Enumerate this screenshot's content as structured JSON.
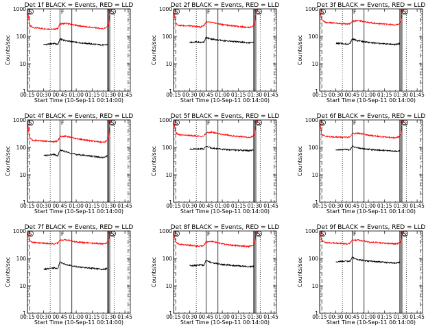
{
  "chart_data": [
    {
      "type": "line",
      "title": "Det 1f BLACK = Events, RED = LLD",
      "xlabel": "Start Time (10-Sep-11 00:14:00)",
      "ylabel": "Counts/sec",
      "yscale": "log",
      "ylim": [
        1,
        1000
      ],
      "xlim": [
        "00:15",
        "01:50"
      ],
      "xticks": [
        "00:15",
        "00:30",
        "00:45",
        "01:00",
        "01:15",
        "01:30",
        "01:45"
      ],
      "yticks": [
        "1",
        "10",
        "100",
        "1000"
      ],
      "grid": false,
      "legend": "none",
      "markers": [
        {
          "label": "S",
          "x": "00:15"
        },
        {
          "label": "F",
          "x": "00:45"
        },
        {
          "label": "F",
          "x": "01:29"
        },
        {
          "label": "S",
          "x": "01:31"
        }
      ],
      "series": [
        {
          "color": "#ff0000",
          "x": [
            "00:15",
            "00:16",
            "00:17",
            "00:20",
            "00:30",
            "00:40",
            "00:43",
            "00:45",
            "00:50",
            "01:00",
            "01:10",
            "01:20",
            "01:25",
            "01:28",
            "01:30",
            "01:31",
            "01:32"
          ],
          "values": [
            1000,
            500,
            250,
            210,
            190,
            180,
            195,
            280,
            300,
            250,
            220,
            200,
            190,
            210,
            280,
            800,
            1000
          ]
        },
        {
          "color": "#000000",
          "x": [
            "00:30",
            "00:35",
            "00:40",
            "00:43",
            "00:45",
            "00:50",
            "01:00",
            "01:10",
            "01:20",
            "01:25",
            "01:29"
          ],
          "values": [
            50,
            52,
            55,
            50,
            80,
            70,
            60,
            55,
            50,
            48,
            50
          ]
        }
      ]
    },
    {
      "type": "line",
      "title": "Det 2f BLACK = Events, RED = LLD",
      "xlabel": "Start Time (10-Sep-11 00:14:00)",
      "ylabel": "Counts/sec",
      "yscale": "log",
      "ylim": [
        1,
        1000
      ],
      "xlim": [
        "00:15",
        "01:50"
      ],
      "xticks": [
        "00:15",
        "00:30",
        "00:45",
        "01:00",
        "01:15",
        "01:30",
        "01:45"
      ],
      "yticks": [
        "1",
        "10",
        "100",
        "1000"
      ],
      "grid": false,
      "legend": "none",
      "markers": [
        {
          "label": "S",
          "x": "00:15"
        },
        {
          "label": "F",
          "x": "00:45"
        },
        {
          "label": "F",
          "x": "01:29"
        },
        {
          "label": "S",
          "x": "01:31"
        }
      ],
      "series": [
        {
          "color": "#ff0000",
          "x": [
            "00:15",
            "00:16",
            "00:17",
            "00:20",
            "00:30",
            "00:40",
            "00:43",
            "00:45",
            "00:50",
            "01:00",
            "01:10",
            "01:20",
            "01:25",
            "01:28",
            "01:30",
            "01:31",
            "01:32"
          ],
          "values": [
            1000,
            500,
            300,
            250,
            240,
            220,
            250,
            330,
            320,
            270,
            240,
            220,
            210,
            230,
            300,
            800,
            1000
          ]
        },
        {
          "color": "#000000",
          "x": [
            "00:30",
            "00:35",
            "00:40",
            "00:43",
            "00:45",
            "00:50",
            "01:00",
            "01:10",
            "01:20",
            "01:25",
            "01:29"
          ],
          "values": [
            60,
            62,
            60,
            62,
            90,
            80,
            70,
            65,
            60,
            58,
            60
          ]
        }
      ]
    },
    {
      "type": "line",
      "title": "Det 3f BLACK = Events, RED = LLD",
      "xlabel": "Start Time (10-Sep-11 00:14:00)",
      "ylabel": "Counts/sec",
      "yscale": "log",
      "ylim": [
        1,
        1000
      ],
      "xlim": [
        "00:15",
        "01:50"
      ],
      "xticks": [
        "00:15",
        "00:30",
        "00:45",
        "01:00",
        "01:15",
        "01:30",
        "01:45"
      ],
      "yticks": [
        "1",
        "10",
        "100",
        "1000"
      ],
      "grid": false,
      "legend": "none",
      "markers": [
        {
          "label": "S",
          "x": "00:15"
        },
        {
          "label": "F",
          "x": "00:45"
        },
        {
          "label": "F",
          "x": "01:29"
        },
        {
          "label": "S",
          "x": "01:31"
        }
      ],
      "series": [
        {
          "color": "#ff0000",
          "x": [
            "00:15",
            "00:16",
            "00:17",
            "00:20",
            "00:30",
            "00:40",
            "00:43",
            "00:45",
            "00:50",
            "01:00",
            "01:10",
            "01:20",
            "01:25",
            "01:28",
            "01:30",
            "01:31",
            "01:32"
          ],
          "values": [
            1000,
            600,
            400,
            320,
            300,
            280,
            290,
            350,
            380,
            320,
            290,
            270,
            260,
            280,
            350,
            800,
            1000
          ]
        },
        {
          "color": "#000000",
          "x": [
            "00:30",
            "00:35",
            "00:40",
            "00:43",
            "00:45",
            "00:50",
            "01:00",
            "01:10",
            "01:20",
            "01:25",
            "01:29"
          ],
          "values": [
            55,
            55,
            52,
            55,
            80,
            70,
            60,
            55,
            52,
            50,
            55
          ]
        }
      ]
    },
    {
      "type": "line",
      "title": "Det 4f BLACK = Events, RED = LLD",
      "xlabel": "Start Time (10-Sep-11 00:14:00)",
      "ylabel": "Counts/sec",
      "yscale": "log",
      "ylim": [
        1,
        1000
      ],
      "xlim": [
        "00:15",
        "01:50"
      ],
      "xticks": [
        "00:15",
        "00:30",
        "00:45",
        "01:00",
        "01:15",
        "01:30",
        "01:45"
      ],
      "yticks": [
        "1",
        "10",
        "100",
        "1000"
      ],
      "grid": false,
      "legend": "none",
      "markers": [
        {
          "label": "S",
          "x": "00:15"
        },
        {
          "label": "F",
          "x": "00:45"
        },
        {
          "label": "F",
          "x": "01:29"
        },
        {
          "label": "S",
          "x": "01:31"
        }
      ],
      "series": [
        {
          "color": "#ff0000",
          "x": [
            "00:15",
            "00:16",
            "00:17",
            "00:20",
            "00:30",
            "00:40",
            "00:43",
            "00:45",
            "00:50",
            "01:00",
            "01:10",
            "01:20",
            "01:25",
            "01:28",
            "01:30",
            "01:31",
            "01:32"
          ],
          "values": [
            1000,
            400,
            220,
            180,
            170,
            160,
            170,
            240,
            260,
            210,
            180,
            160,
            150,
            170,
            240,
            700,
            1000
          ]
        },
        {
          "color": "#000000",
          "x": [
            "00:30",
            "00:35",
            "00:40",
            "00:43",
            "00:45",
            "00:50",
            "01:00",
            "01:10",
            "01:20",
            "01:25",
            "01:29"
          ],
          "values": [
            50,
            52,
            55,
            48,
            80,
            70,
            55,
            50,
            45,
            42,
            50
          ]
        }
      ]
    },
    {
      "type": "line",
      "title": "Det 5f BLACK = Events, RED = LLD",
      "xlabel": "Start Time (10-Sep-11 00:14:00)",
      "ylabel": "Counts/sec",
      "yscale": "log",
      "ylim": [
        1,
        1000
      ],
      "xlim": [
        "00:15",
        "01:50"
      ],
      "xticks": [
        "00:15",
        "00:30",
        "00:45",
        "01:00",
        "01:15",
        "01:30",
        "01:45"
      ],
      "yticks": [
        "1",
        "10",
        "100",
        "1000"
      ],
      "grid": false,
      "legend": "none",
      "markers": [
        {
          "label": "S",
          "x": "00:15"
        },
        {
          "label": "F",
          "x": "00:45"
        },
        {
          "label": "F",
          "x": "01:29"
        },
        {
          "label": "S",
          "x": "01:31"
        }
      ],
      "series": [
        {
          "color": "#ff0000",
          "x": [
            "00:15",
            "00:16",
            "00:17",
            "00:20",
            "00:30",
            "00:40",
            "00:43",
            "00:45",
            "00:50",
            "01:00",
            "01:10",
            "01:20",
            "01:25",
            "01:28",
            "01:30",
            "01:31",
            "01:32"
          ],
          "values": [
            1000,
            600,
            350,
            290,
            270,
            250,
            260,
            330,
            360,
            300,
            260,
            240,
            230,
            250,
            320,
            800,
            1000
          ]
        },
        {
          "color": "#000000",
          "x": [
            "00:30",
            "00:35",
            "00:40",
            "00:43",
            "00:45",
            "00:50",
            "01:00",
            "01:10",
            "01:20",
            "01:25",
            "01:29"
          ],
          "values": [
            85,
            88,
            90,
            88,
            110,
            95,
            85,
            80,
            78,
            75,
            80
          ]
        }
      ]
    },
    {
      "type": "line",
      "title": "Det 6f BLACK = Events, RED = LLD",
      "xlabel": "Start Time (10-Sep-11 00:14:00)",
      "ylabel": "Counts/sec",
      "yscale": "log",
      "ylim": [
        1,
        1000
      ],
      "xlim": [
        "00:15",
        "01:50"
      ],
      "xticks": [
        "00:15",
        "00:30",
        "00:45",
        "01:00",
        "01:15",
        "01:30",
        "01:45"
      ],
      "yticks": [
        "1",
        "10",
        "100",
        "1000"
      ],
      "grid": false,
      "legend": "none",
      "markers": [
        {
          "label": "S",
          "x": "00:15"
        },
        {
          "label": "F",
          "x": "00:45"
        },
        {
          "label": "F",
          "x": "01:29"
        },
        {
          "label": "S",
          "x": "01:31"
        }
      ],
      "series": [
        {
          "color": "#ff0000",
          "x": [
            "00:15",
            "00:16",
            "00:17",
            "00:20",
            "00:30",
            "00:40",
            "00:43",
            "00:45",
            "00:50",
            "01:00",
            "01:10",
            "01:20",
            "01:25",
            "01:28",
            "01:30",
            "01:31",
            "01:32"
          ],
          "values": [
            1000,
            500,
            300,
            250,
            240,
            230,
            240,
            310,
            330,
            280,
            250,
            230,
            220,
            240,
            310,
            800,
            1000
          ]
        },
        {
          "color": "#000000",
          "x": [
            "00:30",
            "00:35",
            "00:40",
            "00:43",
            "00:45",
            "00:50",
            "01:00",
            "01:10",
            "01:20",
            "01:25",
            "01:29"
          ],
          "values": [
            80,
            82,
            85,
            80,
            110,
            95,
            85,
            80,
            75,
            72,
            75
          ]
        }
      ]
    },
    {
      "type": "line",
      "title": "Det 7f BLACK = Events, RED = LLD",
      "xlabel": "Start Time (10-Sep-11 00:14:00)",
      "ylabel": "Counts/sec",
      "yscale": "log",
      "ylim": [
        1,
        1000
      ],
      "xlim": [
        "00:15",
        "01:50"
      ],
      "xticks": [
        "00:15",
        "00:30",
        "00:45",
        "01:00",
        "01:15",
        "01:30",
        "01:45"
      ],
      "yticks": [
        "1",
        "10",
        "100",
        "1000"
      ],
      "grid": false,
      "legend": "none",
      "markers": [
        {
          "label": "S",
          "x": "00:15"
        },
        {
          "label": "F",
          "x": "00:45"
        },
        {
          "label": "F",
          "x": "01:29"
        },
        {
          "label": "S",
          "x": "01:31"
        }
      ],
      "series": [
        {
          "color": "#ff0000",
          "x": [
            "00:15",
            "00:16",
            "00:17",
            "00:20",
            "00:30",
            "00:40",
            "00:43",
            "00:45",
            "00:50",
            "01:00",
            "01:10",
            "01:20",
            "01:25",
            "01:28",
            "01:30",
            "01:31",
            "01:32"
          ],
          "values": [
            1000,
            700,
            450,
            380,
            360,
            340,
            360,
            450,
            480,
            400,
            370,
            350,
            340,
            360,
            420,
            850,
            1000
          ]
        },
        {
          "color": "#000000",
          "x": [
            "00:30",
            "00:35",
            "00:40",
            "00:43",
            "00:45",
            "00:50",
            "01:00",
            "01:10",
            "01:20",
            "01:25",
            "01:29"
          ],
          "values": [
            40,
            42,
            45,
            42,
            75,
            60,
            50,
            45,
            42,
            40,
            42
          ]
        }
      ]
    },
    {
      "type": "line",
      "title": "Det 8f BLACK = Events, RED = LLD",
      "xlabel": "Start Time (10-Sep-11 00:14:00)",
      "ylabel": "Counts/sec",
      "yscale": "log",
      "ylim": [
        1,
        1000
      ],
      "xlim": [
        "00:15",
        "01:50"
      ],
      "xticks": [
        "00:15",
        "00:30",
        "00:45",
        "01:00",
        "01:15",
        "01:30",
        "01:45"
      ],
      "yticks": [
        "1",
        "10",
        "100",
        "1000"
      ],
      "grid": false,
      "legend": "none",
      "markers": [
        {
          "label": "S",
          "x": "00:15"
        },
        {
          "label": "F",
          "x": "00:45"
        },
        {
          "label": "F",
          "x": "01:29"
        },
        {
          "label": "S",
          "x": "01:31"
        }
      ],
      "series": [
        {
          "color": "#ff0000",
          "x": [
            "00:15",
            "00:16",
            "00:17",
            "00:20",
            "00:30",
            "00:40",
            "00:43",
            "00:45",
            "00:50",
            "01:00",
            "01:10",
            "01:20",
            "01:25",
            "01:28",
            "01:30",
            "01:31",
            "01:32"
          ],
          "values": [
            1000,
            600,
            400,
            330,
            300,
            280,
            300,
            400,
            420,
            340,
            300,
            280,
            270,
            300,
            380,
            850,
            1000
          ]
        },
        {
          "color": "#000000",
          "x": [
            "00:30",
            "00:35",
            "00:40",
            "00:43",
            "00:45",
            "00:50",
            "01:00",
            "01:10",
            "01:20",
            "01:25",
            "01:29"
          ],
          "values": [
            55,
            55,
            58,
            55,
            85,
            70,
            60,
            55,
            52,
            50,
            52
          ]
        }
      ]
    },
    {
      "type": "line",
      "title": "Det 9f BLACK = Events, RED = LLD",
      "xlabel": "Start Time (10-Sep-11 00:14:00)",
      "ylabel": "Counts/sec",
      "yscale": "log",
      "ylim": [
        1,
        1000
      ],
      "xlim": [
        "00:15",
        "01:50"
      ],
      "xticks": [
        "00:15",
        "00:30",
        "00:45",
        "01:00",
        "01:15",
        "01:30",
        "01:45"
      ],
      "yticks": [
        "1",
        "10",
        "100",
        "1000"
      ],
      "grid": false,
      "legend": "none",
      "markers": [
        {
          "label": "S",
          "x": "00:15"
        },
        {
          "label": "F",
          "x": "00:45"
        },
        {
          "label": "F",
          "x": "01:29"
        },
        {
          "label": "S",
          "x": "01:31"
        }
      ],
      "series": [
        {
          "color": "#ff0000",
          "x": [
            "00:15",
            "00:16",
            "00:17",
            "00:20",
            "00:30",
            "00:40",
            "00:43",
            "00:45",
            "00:50",
            "01:00",
            "01:10",
            "01:20",
            "01:25",
            "01:28",
            "01:30",
            "01:31",
            "01:32"
          ],
          "values": [
            1000,
            700,
            450,
            380,
            360,
            340,
            360,
            450,
            470,
            400,
            370,
            350,
            340,
            360,
            420,
            850,
            1000
          ]
        },
        {
          "color": "#000000",
          "x": [
            "00:30",
            "00:35",
            "00:40",
            "00:43",
            "00:45",
            "00:50",
            "01:00",
            "01:10",
            "01:20",
            "01:25",
            "01:29"
          ],
          "values": [
            75,
            78,
            80,
            78,
            110,
            90,
            80,
            75,
            70,
            68,
            72
          ]
        }
      ]
    }
  ]
}
